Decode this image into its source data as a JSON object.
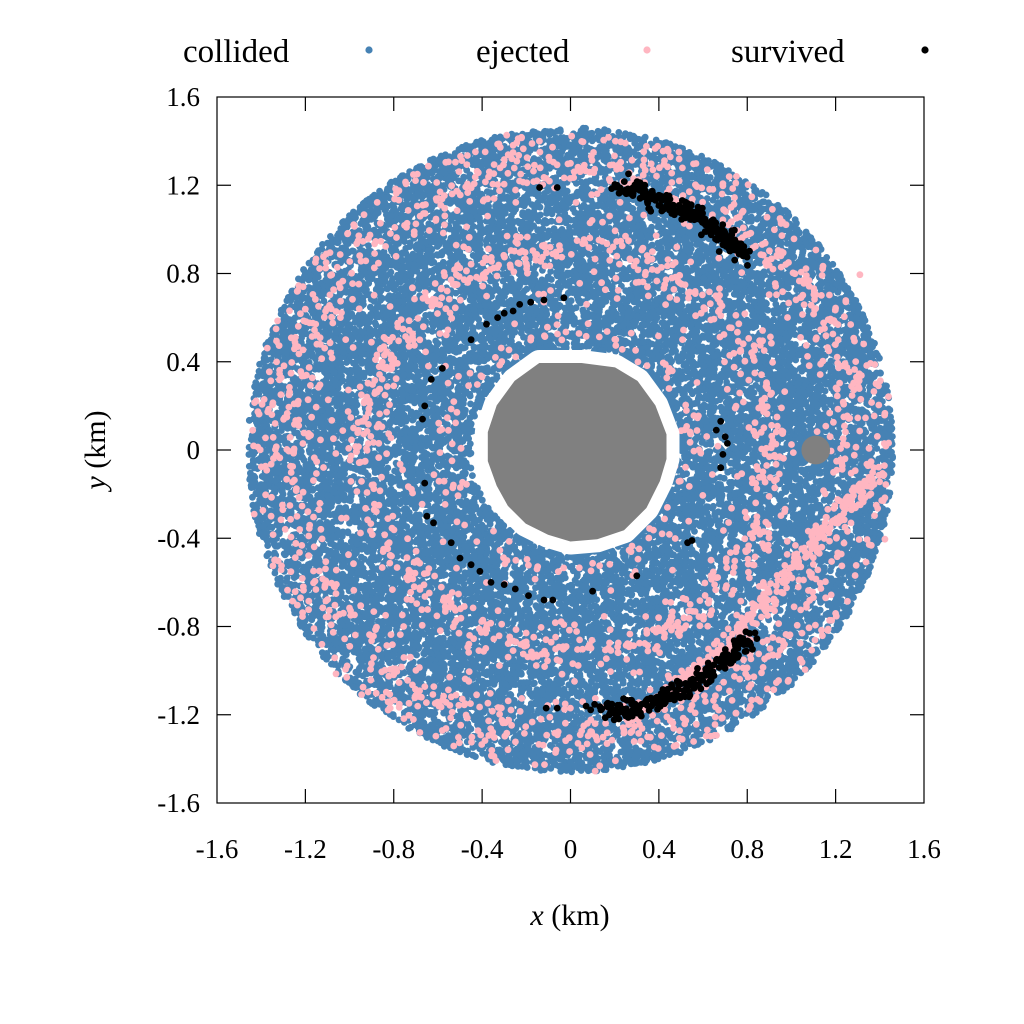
{
  "chart_data": {
    "type": "scatter",
    "xlabel_var": "x",
    "xlabel_unit": " (km)",
    "ylabel_var": "y",
    "ylabel_unit": " (km)",
    "xlim": [
      -1.6,
      1.6
    ],
    "ylim": [
      -1.6,
      1.6
    ],
    "xticks": [
      "-1.6",
      "-1.2",
      "-0.8",
      "-0.4",
      "0",
      "0.4",
      "0.8",
      "1.2",
      "1.6"
    ],
    "yticks": [
      "-1.6",
      "-1.2",
      "-0.8",
      "-0.4",
      "0",
      "0.4",
      "0.8",
      "1.2",
      "1.6"
    ],
    "grid": false,
    "legend_position": "top",
    "series": [
      {
        "name": "collided",
        "color": "#4682b4",
        "region": {
          "r_inner": 0.45,
          "r_outer": 1.46
        },
        "approx_count": 22000
      },
      {
        "name": "ejected",
        "color": "#ffb6c1",
        "bands": [
          {
            "r": 0.92,
            "width": 0.1,
            "count": 650
          },
          {
            "r": 1.28,
            "width": 0.12,
            "count": 800
          },
          {
            "r": 1.42,
            "width": 0.03,
            "count": 180
          },
          {
            "r": 0.55,
            "width": 0.06,
            "count": 90
          }
        ],
        "inner_scatter_count": 350,
        "arc_x": [
          1.4,
          1.25,
          1.1,
          0.95,
          0.8,
          0.65,
          0.45,
          0.25
        ],
        "arc_y": [
          -0.1,
          -0.25,
          -0.42,
          -0.6,
          -0.78,
          -0.95,
          -1.1,
          -1.22
        ]
      },
      {
        "name": "survived",
        "color": "#000000",
        "clumps": [
          {
            "x": 0.22,
            "y": 1.2
          },
          {
            "x": 0.4,
            "y": 1.13
          },
          {
            "x": 0.55,
            "y": 1.07
          },
          {
            "x": 0.68,
            "y": 0.98
          },
          {
            "x": 0.8,
            "y": 0.88
          },
          {
            "x": 0.12,
            "y": -1.18
          },
          {
            "x": 0.3,
            "y": -1.17
          },
          {
            "x": 0.5,
            "y": -1.1
          },
          {
            "x": 0.68,
            "y": -0.98
          },
          {
            "x": 0.82,
            "y": -0.85
          }
        ],
        "scattered_points": [
          [
            -0.14,
            1.19
          ],
          [
            -0.06,
            1.19
          ],
          [
            -0.03,
            0.69
          ],
          [
            -0.12,
            0.68
          ],
          [
            -0.18,
            0.67
          ],
          [
            -0.23,
            0.66
          ],
          [
            -0.26,
            0.63
          ],
          [
            -0.3,
            0.62
          ],
          [
            -0.33,
            0.6
          ],
          [
            -0.38,
            0.57
          ],
          [
            -0.45,
            0.5
          ],
          [
            -0.58,
            0.37
          ],
          [
            -0.63,
            0.32
          ],
          [
            -0.66,
            0.2
          ],
          [
            -0.67,
            0.14
          ],
          [
            -0.66,
            -0.15
          ],
          [
            -0.65,
            -0.3
          ],
          [
            -0.62,
            -0.33
          ],
          [
            -0.54,
            -0.42
          ],
          [
            -0.5,
            -0.49
          ],
          [
            -0.45,
            -0.52
          ],
          [
            -0.41,
            -0.55
          ],
          [
            -0.36,
            -0.6
          ],
          [
            -0.3,
            -0.61
          ],
          [
            -0.25,
            -0.63
          ],
          [
            -0.19,
            -0.66
          ],
          [
            -0.12,
            -0.68
          ],
          [
            -0.08,
            -0.68
          ],
          [
            0.1,
            -0.64
          ],
          [
            0.3,
            -0.57
          ],
          [
            0.53,
            -0.42
          ],
          [
            0.55,
            -0.41
          ],
          [
            0.66,
            0.09
          ],
          [
            0.68,
            0.13
          ],
          [
            0.7,
            0.06
          ],
          [
            0.69,
            -0.02
          ],
          [
            0.68,
            -0.08
          ],
          [
            0.71,
            0.03
          ],
          [
            -0.11,
            -1.17
          ],
          [
            -0.06,
            -1.17
          ]
        ]
      }
    ],
    "bodies": [
      {
        "name": "primary",
        "color": "#808080",
        "x": 0.0,
        "y": 0.0
      },
      {
        "name": "secondary",
        "color": "#808080",
        "x": 1.11,
        "y": 0.0,
        "radius": 0.065
      }
    ]
  }
}
